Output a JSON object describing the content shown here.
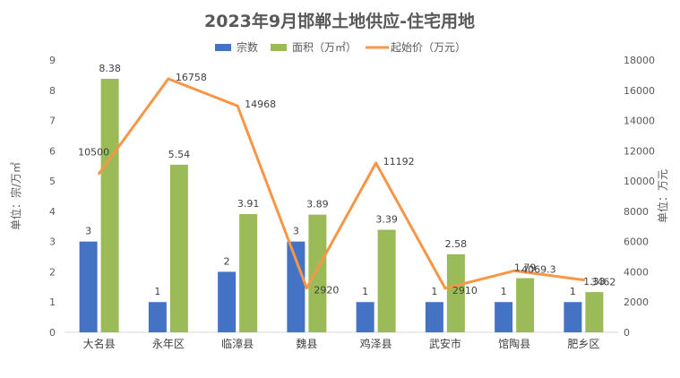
{
  "chart_data": {
    "type": "bar",
    "title": "2023年9月邯郸土地供应-住宅用地",
    "categories": [
      "大名县",
      "永年区",
      "临漳县",
      "魏县",
      "鸡泽县",
      "武安市",
      "馆陶县",
      "肥乡区"
    ],
    "series": [
      {
        "name": "宗数",
        "type": "bar",
        "axis": "left",
        "color": "#4472C4",
        "values": [
          3,
          1,
          2,
          3,
          1,
          1,
          1,
          1
        ],
        "labels": [
          "3",
          "1",
          "2",
          "3",
          "1",
          "1",
          "1",
          "1"
        ]
      },
      {
        "name": "面积（万㎡）",
        "type": "bar",
        "axis": "left",
        "color": "#9BBB59",
        "values": [
          8.38,
          5.54,
          3.91,
          3.89,
          3.39,
          2.58,
          1.79,
          1.33
        ],
        "labels": [
          "8.38",
          "5.54",
          "3.91",
          "3.89",
          "3.39",
          "2.58",
          "1.79",
          "1.33"
        ]
      },
      {
        "name": "起始价（万元）",
        "type": "line",
        "axis": "right",
        "color": "#F79646",
        "values": [
          10500,
          16758,
          14968,
          2920,
          11192,
          2910,
          4069.3,
          3462
        ],
        "labels": [
          "10500",
          "16758",
          "14968",
          "2920",
          "11192",
          "2910",
          "4069.3",
          "3462"
        ]
      }
    ],
    "y_left": {
      "label": "单位：宗/万㎡",
      "min": 0,
      "max": 9,
      "ticks": [
        "0",
        "1",
        "2",
        "3",
        "4",
        "5",
        "6",
        "7",
        "8",
        "9"
      ]
    },
    "y_right": {
      "label": "单位：万元",
      "min": 0,
      "max": 18000,
      "ticks": [
        "0",
        "2000",
        "4000",
        "6000",
        "8000",
        "10000",
        "12000",
        "14000",
        "16000",
        "18000"
      ]
    },
    "grid": false,
    "legend_position": "top-center"
  }
}
